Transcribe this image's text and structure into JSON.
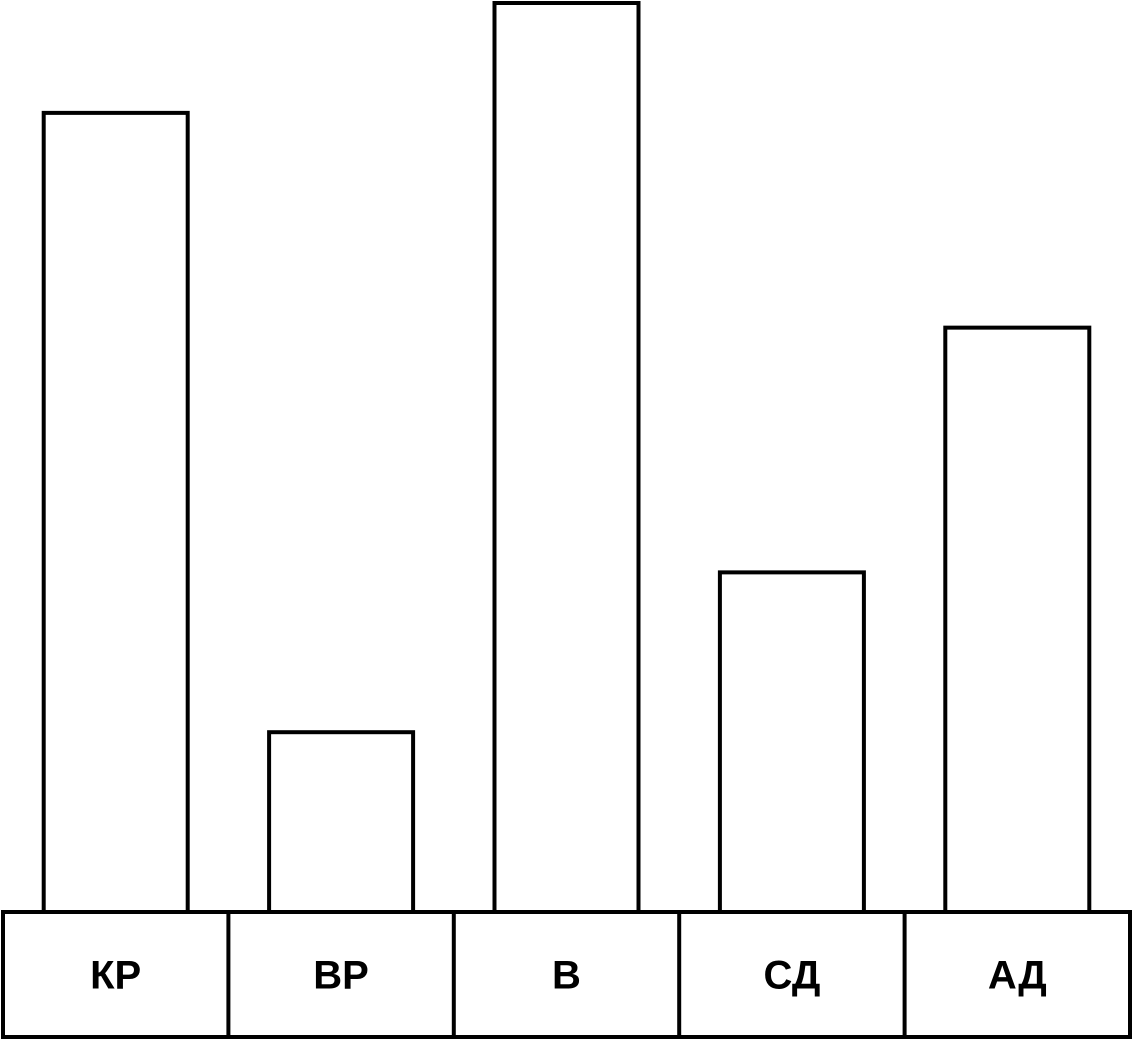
{
  "chart_data": {
    "type": "bar",
    "categories": [
      "КР",
      "ВР",
      "В",
      "СД",
      "АД"
    ],
    "values": [
      800,
      180,
      910,
      340,
      585
    ],
    "color": "#ffffff",
    "ylim": [
      0,
      910
    ]
  }
}
